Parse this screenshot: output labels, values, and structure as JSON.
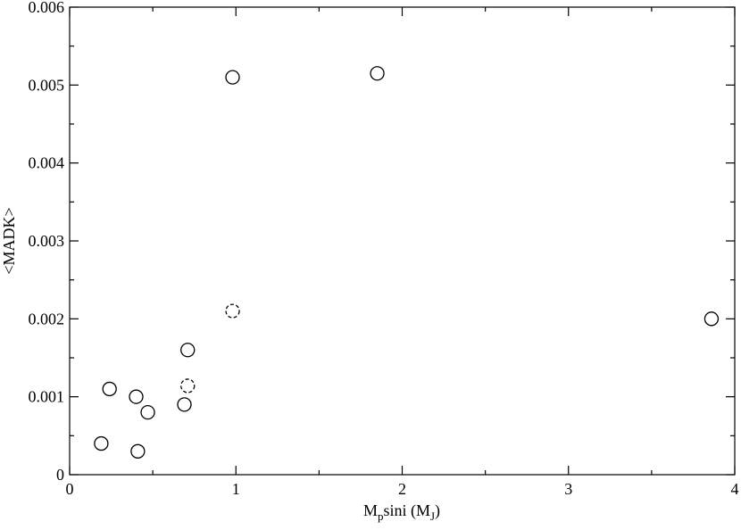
{
  "chart_data": {
    "type": "scatter",
    "title": "",
    "xlabel": {
      "main": "M",
      "sub": "p",
      "mid": "sini (M",
      "sub2": "J",
      "end": ")"
    },
    "ylabel": "<MADK>",
    "xlim": [
      0,
      4
    ],
    "ylim": [
      0,
      0.006
    ],
    "x_ticks": [
      0,
      1,
      2,
      3,
      4
    ],
    "x_tick_labels": [
      "0",
      "1",
      "2",
      "3",
      "4"
    ],
    "x_minor_ticks": [
      0.5,
      1.5,
      2.5,
      3.5
    ],
    "y_ticks": [
      0,
      0.001,
      0.002,
      0.003,
      0.004,
      0.005,
      0.006
    ],
    "y_tick_labels": [
      "0",
      "0.001",
      "0.002",
      "0.003",
      "0.004",
      "0.005",
      "0.006"
    ],
    "y_minor_ticks": [
      0.0005,
      0.0015,
      0.0025,
      0.0035,
      0.0045,
      0.0055
    ],
    "grid": false,
    "legend": "none",
    "series": [
      {
        "marker": "open-circle",
        "line_style": "solid",
        "points": [
          {
            "x": 0.19,
            "y": 0.0004
          },
          {
            "x": 0.24,
            "y": 0.0011
          },
          {
            "x": 0.41,
            "y": 0.0003
          },
          {
            "x": 0.4,
            "y": 0.001
          },
          {
            "x": 0.47,
            "y": 0.0008
          },
          {
            "x": 0.69,
            "y": 0.0009
          },
          {
            "x": 0.71,
            "y": 0.0016
          },
          {
            "x": 0.98,
            "y": 0.0051
          },
          {
            "x": 1.85,
            "y": 0.00515
          },
          {
            "x": 3.86,
            "y": 0.002
          }
        ]
      },
      {
        "marker": "open-circle",
        "line_style": "dashed",
        "points": [
          {
            "x": 0.71,
            "y": 0.00114
          },
          {
            "x": 0.98,
            "y": 0.0021
          }
        ]
      }
    ],
    "colors": {
      "axes": "#000000",
      "markers": "#000000",
      "background": "#ffffff"
    }
  }
}
